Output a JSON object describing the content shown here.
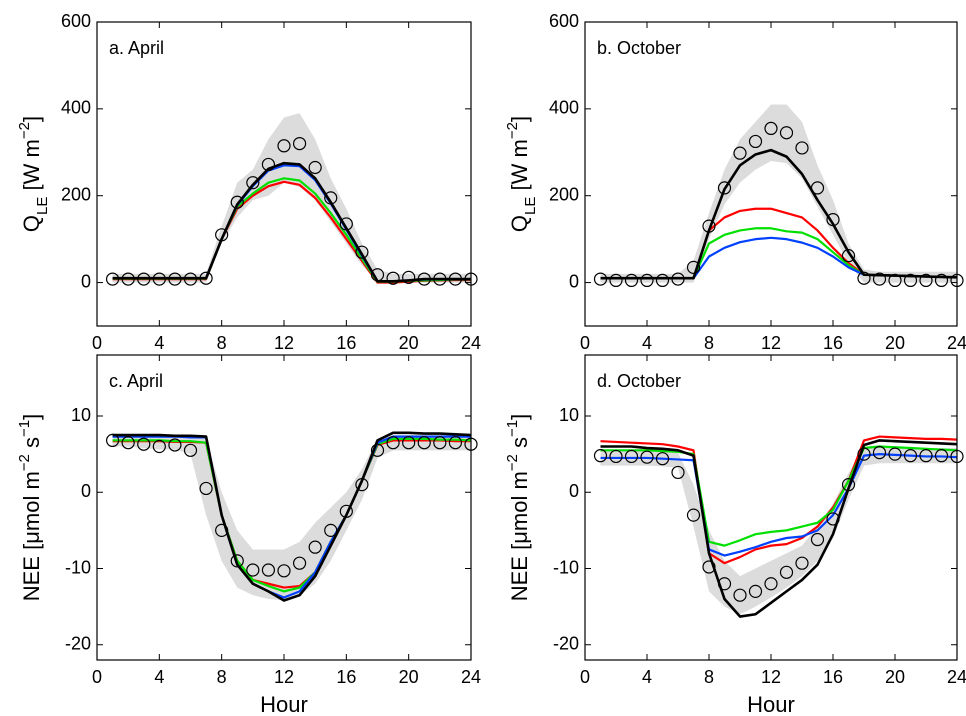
{
  "chart_data": [
    {
      "type": "line",
      "title": "a. April",
      "ylabel": [
        {
          "text": "Q"
        },
        {
          "sub": "LE"
        },
        {
          "text": " [W m"
        },
        {
          "sup": "−2"
        },
        {
          "text": "]"
        }
      ],
      "x": [
        1,
        2,
        3,
        4,
        5,
        6,
        7,
        8,
        9,
        10,
        11,
        12,
        13,
        14,
        15,
        16,
        17,
        18,
        19,
        20,
        21,
        22,
        23,
        24
      ],
      "xlim": [
        0,
        24
      ],
      "xticks": [
        0,
        4,
        8,
        12,
        16,
        20,
        24
      ],
      "ylim": [
        -100,
        600
      ],
      "yticks": [
        0,
        200,
        400,
        600
      ],
      "band": {
        "color": "#dcdcdc",
        "lower": [
          0,
          0,
          0,
          0,
          0,
          0,
          0,
          90,
          150,
          190,
          200,
          230,
          220,
          190,
          140,
          90,
          40,
          0,
          0,
          0,
          0,
          0,
          0,
          0
        ],
        "upper": [
          20,
          20,
          20,
          20,
          20,
          20,
          20,
          130,
          230,
          260,
          330,
          380,
          390,
          330,
          240,
          170,
          90,
          30,
          20,
          20,
          20,
          20,
          20,
          20
        ]
      },
      "series": [
        {
          "color": "#ff0000",
          "values": [
            8,
            8,
            8,
            8,
            8,
            8,
            8,
            100,
            170,
            200,
            222,
            232,
            225,
            195,
            150,
            100,
            50,
            0,
            0,
            2,
            4,
            5,
            6,
            6
          ]
        },
        {
          "color": "#00e000",
          "values": [
            9,
            9,
            9,
            9,
            9,
            9,
            9,
            100,
            175,
            205,
            230,
            240,
            235,
            205,
            160,
            110,
            55,
            2,
            2,
            4,
            5,
            6,
            7,
            7
          ]
        },
        {
          "color": "#0040ff",
          "values": [
            10,
            10,
            10,
            10,
            10,
            10,
            10,
            100,
            178,
            222,
            258,
            270,
            268,
            236,
            182,
            122,
            62,
            3,
            3,
            5,
            7,
            8,
            8,
            8
          ]
        },
        {
          "color": "#000000",
          "values": [
            10,
            10,
            10,
            10,
            10,
            10,
            10,
            100,
            180,
            225,
            262,
            275,
            272,
            240,
            185,
            125,
            65,
            3,
            3,
            5,
            8,
            8,
            8,
            8
          ]
        }
      ],
      "observations": {
        "color": "#000000",
        "values": [
          8,
          8,
          8,
          8,
          8,
          8,
          10,
          110,
          185,
          230,
          272,
          315,
          320,
          265,
          195,
          135,
          70,
          18,
          10,
          12,
          8,
          8,
          8,
          8
        ]
      }
    },
    {
      "type": "line",
      "title": "b. October",
      "ylabel": [
        {
          "text": "Q"
        },
        {
          "sub": "LE"
        },
        {
          "text": " [W m"
        },
        {
          "sup": "−2"
        },
        {
          "text": "]"
        }
      ],
      "x": [
        1,
        2,
        3,
        4,
        5,
        6,
        7,
        8,
        9,
        10,
        11,
        12,
        13,
        14,
        15,
        16,
        17,
        18,
        19,
        20,
        21,
        22,
        23,
        24
      ],
      "xlim": [
        0,
        24
      ],
      "xticks": [
        0,
        4,
        8,
        12,
        16,
        20,
        24
      ],
      "ylim": [
        -100,
        600
      ],
      "yticks": [
        0,
        200,
        400,
        600
      ],
      "band": {
        "color": "#dcdcdc",
        "lower": [
          0,
          0,
          0,
          0,
          0,
          0,
          0,
          100,
          180,
          230,
          260,
          280,
          275,
          240,
          175,
          110,
          45,
          0,
          0,
          0,
          0,
          0,
          0,
          0
        ],
        "upper": [
          20,
          20,
          20,
          20,
          20,
          20,
          50,
          160,
          260,
          330,
          370,
          410,
          410,
          370,
          270,
          190,
          90,
          30,
          25,
          25,
          25,
          25,
          25,
          25
        ]
      },
      "series": [
        {
          "color": "#ff0000",
          "values": [
            10,
            10,
            10,
            10,
            10,
            10,
            10,
            120,
            150,
            165,
            170,
            170,
            160,
            150,
            120,
            80,
            45,
            18,
            17,
            16,
            15,
            14,
            13,
            12
          ]
        },
        {
          "color": "#00e000",
          "values": [
            10,
            10,
            10,
            10,
            10,
            10,
            10,
            90,
            110,
            120,
            125,
            125,
            118,
            115,
            100,
            70,
            40,
            18,
            17,
            16,
            15,
            14,
            13,
            12
          ]
        },
        {
          "color": "#0040ff",
          "values": [
            10,
            10,
            10,
            10,
            10,
            10,
            10,
            60,
            80,
            93,
            100,
            103,
            100,
            92,
            80,
            60,
            35,
            18,
            17,
            16,
            15,
            14,
            13,
            12
          ]
        },
        {
          "color": "#000000",
          "values": [
            10,
            10,
            10,
            10,
            10,
            10,
            10,
            120,
            215,
            270,
            295,
            305,
            290,
            250,
            190,
            135,
            70,
            18,
            17,
            16,
            15,
            14,
            13,
            12
          ]
        }
      ],
      "observations": {
        "color": "#000000",
        "values": [
          8,
          5,
          5,
          5,
          5,
          8,
          35,
          130,
          218,
          298,
          325,
          355,
          345,
          310,
          218,
          145,
          62,
          10,
          8,
          5,
          5,
          5,
          5,
          5
        ]
      }
    },
    {
      "type": "line",
      "title": "c. April",
      "xlabel": "Hour",
      "ylabel": [
        {
          "text": "NEE [μmol m"
        },
        {
          "sup": "−2"
        },
        {
          "text": " s"
        },
        {
          "sup": "−1"
        },
        {
          "text": "]"
        }
      ],
      "x": [
        1,
        2,
        3,
        4,
        5,
        6,
        7,
        8,
        9,
        10,
        11,
        12,
        13,
        14,
        15,
        16,
        17,
        18,
        19,
        20,
        21,
        22,
        23,
        24
      ],
      "xlim": [
        0,
        24
      ],
      "xticks": [
        0,
        4,
        8,
        12,
        16,
        20,
        24
      ],
      "ylim": [
        -22,
        18
      ],
      "yticks": [
        -20,
        -10,
        0,
        10
      ],
      "band": {
        "color": "#dcdcdc",
        "lower": [
          6,
          6,
          5.8,
          5.6,
          5.6,
          5,
          -3,
          -9,
          -12.5,
          -13.5,
          -14,
          -14.2,
          -13.5,
          -12,
          -9,
          -5,
          -1,
          4.5,
          5.5,
          5.5,
          5.5,
          5.5,
          5.5,
          5.5
        ],
        "upper": [
          7.5,
          7.5,
          7.5,
          7.5,
          7.5,
          7.5,
          7,
          0,
          -5,
          -7.5,
          -7.5,
          -7.5,
          -6.5,
          -4,
          -2,
          0,
          3,
          7,
          7.5,
          7.5,
          7.5,
          7.5,
          7.5,
          7.5
        ]
      },
      "series": [
        {
          "color": "#ff0000",
          "values": [
            6.7,
            6.7,
            6.7,
            6.7,
            6.6,
            6.6,
            6.5,
            -3,
            -9,
            -11.5,
            -12,
            -12.5,
            -12.3,
            -10.5,
            -6.5,
            -3,
            1.5,
            6.2,
            6.8,
            6.8,
            6.8,
            6.8,
            6.7,
            6.7
          ]
        },
        {
          "color": "#00e000",
          "values": [
            6.8,
            6.8,
            6.8,
            6.8,
            6.7,
            6.7,
            6.5,
            -3,
            -9,
            -11.5,
            -12.3,
            -13,
            -12.5,
            -10.5,
            -6.5,
            -3,
            1.5,
            6.3,
            7,
            7,
            7,
            6.9,
            6.9,
            6.8
          ]
        },
        {
          "color": "#0040ff",
          "values": [
            7.3,
            7.3,
            7.3,
            7.3,
            7.3,
            7.2,
            7.2,
            -3,
            -9.5,
            -12,
            -13,
            -13.8,
            -13,
            -10.5,
            -6.5,
            -3,
            1.5,
            6.5,
            7.3,
            7.3,
            7.3,
            7.3,
            7.3,
            7.3
          ]
        },
        {
          "color": "#000000",
          "values": [
            7.5,
            7.5,
            7.5,
            7.5,
            7.4,
            7.4,
            7.3,
            -3,
            -9.5,
            -12,
            -13,
            -14.2,
            -13.5,
            -11,
            -7,
            -3,
            1.5,
            6.8,
            7.8,
            7.8,
            7.7,
            7.7,
            7.6,
            7.5
          ]
        }
      ],
      "observations": {
        "color": "#000000",
        "values": [
          6.8,
          6.5,
          6.3,
          6,
          6.2,
          5.5,
          0.5,
          -5,
          -9,
          -10.2,
          -10.2,
          -10.3,
          -9.3,
          -7.2,
          -5,
          -2.5,
          1,
          5.5,
          6.5,
          6.5,
          6.5,
          6.5,
          6.5,
          6.3
        ]
      }
    },
    {
      "type": "line",
      "title": "d. October",
      "xlabel": "Hour",
      "ylabel": [
        {
          "text": "NEE [μmol m"
        },
        {
          "sup": "−2"
        },
        {
          "text": " s"
        },
        {
          "sup": "−1"
        },
        {
          "text": "]"
        }
      ],
      "x": [
        1,
        2,
        3,
        4,
        5,
        6,
        7,
        8,
        9,
        10,
        11,
        12,
        13,
        14,
        15,
        16,
        17,
        18,
        19,
        20,
        21,
        22,
        23,
        24
      ],
      "xlim": [
        0,
        24
      ],
      "xticks": [
        0,
        4,
        8,
        12,
        16,
        20,
        24
      ],
      "ylim": [
        -22,
        18
      ],
      "yticks": [
        -20,
        -10,
        0,
        10
      ],
      "band": {
        "color": "#dcdcdc",
        "lower": [
          3.5,
          3.5,
          3.5,
          3.5,
          3.4,
          3.2,
          -4.5,
          -13,
          -15,
          -16,
          -15,
          -13.8,
          -12.5,
          -11,
          -9,
          -6,
          -1,
          3.5,
          3.8,
          3.8,
          3.8,
          3.8,
          3.8,
          3.8
        ],
        "upper": [
          5.5,
          5.5,
          5.5,
          5.5,
          5.4,
          5.2,
          1,
          -5,
          -9,
          -11,
          -10,
          -9,
          -8,
          -7,
          -4.5,
          -1.5,
          2.5,
          5.8,
          5.8,
          5.8,
          5.8,
          5.8,
          5.8,
          5.8
        ]
      },
      "series": [
        {
          "color": "#ff0000",
          "values": [
            6.7,
            6.6,
            6.5,
            6.4,
            6.3,
            6,
            5.5,
            -8,
            -9.3,
            -8.5,
            -7.5,
            -7,
            -6.8,
            -6,
            -4.5,
            -2,
            1.5,
            6.8,
            7.3,
            7.2,
            7.1,
            7,
            7,
            6.9
          ]
        },
        {
          "color": "#00e000",
          "values": [
            5.5,
            5.5,
            5.5,
            5.5,
            5.4,
            5.3,
            5,
            -6.5,
            -7,
            -6.3,
            -5.5,
            -5.2,
            -5,
            -4.5,
            -4,
            -2.3,
            1.5,
            5.8,
            6,
            5.9,
            5.8,
            5.7,
            5.6,
            5.5
          ]
        },
        {
          "color": "#0040ff",
          "values": [
            4.5,
            4.5,
            4.5,
            4.5,
            4.4,
            4.3,
            4.2,
            -7.5,
            -8.3,
            -7.8,
            -7.2,
            -6.5,
            -6,
            -5.8,
            -5,
            -3,
            0.5,
            4.8,
            5,
            4.9,
            4.8,
            4.7,
            4.7,
            4.6
          ]
        },
        {
          "color": "#000000",
          "values": [
            6,
            6,
            6,
            5.8,
            5.7,
            5.5,
            4.8,
            -8,
            -14,
            -16.3,
            -16,
            -14.5,
            -13,
            -11.5,
            -9.5,
            -5.5,
            0.5,
            6.2,
            6.8,
            6.7,
            6.6,
            6.5,
            6.4,
            6.3
          ]
        }
      ],
      "observations": {
        "color": "#000000",
        "values": [
          4.8,
          4.7,
          4.7,
          4.6,
          4.4,
          2.6,
          -3,
          -9.8,
          -12,
          -13.5,
          -13,
          -12,
          -10.5,
          -9.3,
          -6.2,
          -3.5,
          1,
          5,
          5.2,
          5,
          4.8,
          4.8,
          4.8,
          4.7
        ]
      }
    }
  ]
}
